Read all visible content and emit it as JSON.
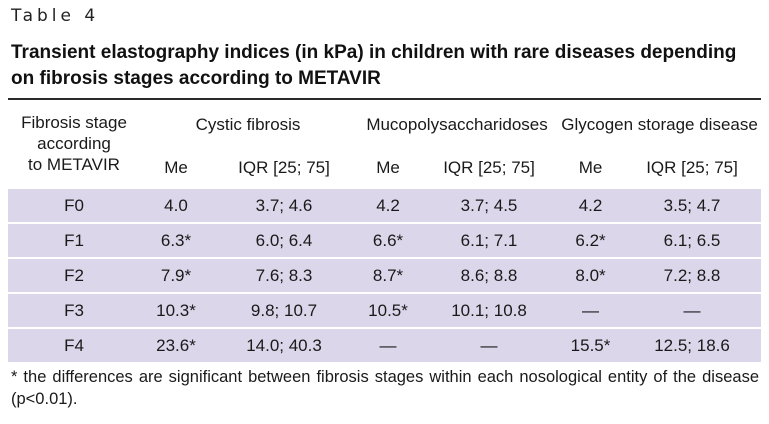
{
  "caption_label": "Table 4",
  "title": "Transient elastography indices (in kPa) in children with rare diseases depending on fibrosis stages according to METAVIR",
  "header": {
    "stage_label": [
      "Fibrosis stage",
      "according",
      "to METAVIR"
    ],
    "diseases": [
      "Cystic fibrosis",
      "Mucopolysaccharidoses",
      "Glycogen storage disease"
    ],
    "me_label": "Me",
    "iqr_label": "IQR [25; 75]"
  },
  "rows": [
    {
      "stage": "F0",
      "cf_me": "4.0",
      "cf_iqr": "3.7; 4.6",
      "mps_me": "4.2",
      "mps_iqr": "3.7; 4.5",
      "gsd_me": "4.2",
      "gsd_iqr": "3.5; 4.7"
    },
    {
      "stage": "F1",
      "cf_me": "6.3*",
      "cf_iqr": "6.0; 6.4",
      "mps_me": "6.6*",
      "mps_iqr": "6.1; 7.1",
      "gsd_me": "6.2*",
      "gsd_iqr": "6.1; 6.5"
    },
    {
      "stage": "F2",
      "cf_me": "7.9*",
      "cf_iqr": "7.6; 8.3",
      "mps_me": "8.7*",
      "mps_iqr": "8.6; 8.8",
      "gsd_me": "8.0*",
      "gsd_iqr": "7.2; 8.8"
    },
    {
      "stage": "F3",
      "cf_me": "10.3*",
      "cf_iqr": "9.8; 10.7",
      "mps_me": "10.5*",
      "mps_iqr": "10.1; 10.8",
      "gsd_me": "—",
      "gsd_iqr": "—"
    },
    {
      "stage": "F4",
      "cf_me": "23.6*",
      "cf_iqr": "14.0; 40.3",
      "mps_me": "—",
      "mps_iqr": "—",
      "gsd_me": "15.5*",
      "gsd_iqr": "12.5; 18.6"
    }
  ],
  "footnote": "* the differences are significant between fibrosis stages within each nosological entity of the disease (p<0.01)."
}
